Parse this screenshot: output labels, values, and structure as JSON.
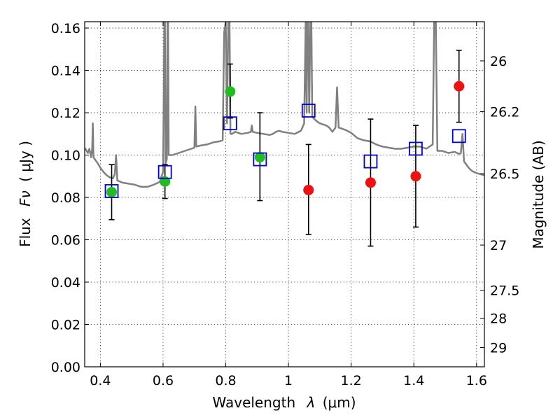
{
  "chart_data": {
    "type": "scatter",
    "xlabel_text": "Wavelength",
    "xlabel_math_symbol": "λ",
    "xlabel_unit": "(μm)",
    "ylabel_text": "Flux",
    "ylabel_math_symbol": "Fν",
    "ylabel_unit": "( μJy )",
    "y2label": "Magnitude (AB)",
    "xlim": [
      0.35,
      1.625
    ],
    "ylim": [
      0.0,
      0.163
    ],
    "x_ticks": [
      0.4,
      0.6,
      0.8,
      1.0,
      1.2,
      1.4,
      1.6
    ],
    "x_tick_labels": [
      "0.4",
      "0.6",
      "0.8",
      "1",
      "1.2",
      "1.4",
      "1.6"
    ],
    "y_ticks": [
      0.0,
      0.02,
      0.04,
      0.06,
      0.08,
      0.1,
      0.12,
      0.14,
      0.16
    ],
    "y_tick_labels": [
      "0.00",
      "0.02",
      "0.04",
      "0.06",
      "0.08",
      "0.10",
      "0.12",
      "0.14",
      "0.16"
    ],
    "y2_ticks": [
      {
        "flux": 0.1445,
        "label": "26"
      },
      {
        "flux": 0.1205,
        "label": "26.2"
      },
      {
        "flux": 0.0912,
        "label": "26.5"
      },
      {
        "flux": 0.0575,
        "label": "27"
      },
      {
        "flux": 0.0362,
        "label": "27.5"
      },
      {
        "flux": 0.0229,
        "label": "28"
      },
      {
        "flux": 0.0091,
        "label": "29"
      }
    ],
    "grid": true,
    "series": [
      {
        "kind": "line",
        "color": "#808080",
        "points": [
          [
            0.35,
            0.1035
          ],
          [
            0.36,
            0.101
          ],
          [
            0.365,
            0.103
          ],
          [
            0.37,
            0.099
          ],
          [
            0.374,
            0.103
          ],
          [
            0.376,
            0.115
          ],
          [
            0.378,
            0.099
          ],
          [
            0.385,
            0.0975
          ],
          [
            0.392,
            0.096
          ],
          [
            0.4,
            0.094
          ],
          [
            0.41,
            0.092
          ],
          [
            0.42,
            0.0905
          ],
          [
            0.43,
            0.0895
          ],
          [
            0.44,
            0.089
          ],
          [
            0.446,
            0.091
          ],
          [
            0.45,
            0.1
          ],
          [
            0.454,
            0.088
          ],
          [
            0.47,
            0.087
          ],
          [
            0.49,
            0.0865
          ],
          [
            0.51,
            0.086
          ],
          [
            0.53,
            0.085
          ],
          [
            0.55,
            0.085
          ],
          [
            0.57,
            0.086
          ],
          [
            0.585,
            0.087
          ],
          [
            0.59,
            0.0875
          ],
          [
            0.595,
            0.09
          ],
          [
            0.6,
            0.092
          ],
          [
            0.604,
            0.163
          ],
          [
            0.606,
            0.163
          ],
          [
            0.608,
            0.096
          ],
          [
            0.612,
            0.098
          ],
          [
            0.614,
            0.163
          ],
          [
            0.616,
            0.163
          ],
          [
            0.618,
            0.1
          ],
          [
            0.63,
            0.1
          ],
          [
            0.65,
            0.101
          ],
          [
            0.67,
            0.102
          ],
          [
            0.69,
            0.103
          ],
          [
            0.7,
            0.1035
          ],
          [
            0.703,
            0.123
          ],
          [
            0.706,
            0.104
          ],
          [
            0.72,
            0.1045
          ],
          [
            0.74,
            0.105
          ],
          [
            0.76,
            0.106
          ],
          [
            0.78,
            0.1065
          ],
          [
            0.79,
            0.107
          ],
          [
            0.795,
            0.158
          ],
          [
            0.8,
            0.163
          ],
          [
            0.804,
            0.115
          ],
          [
            0.808,
            0.163
          ],
          [
            0.812,
            0.163
          ],
          [
            0.815,
            0.11
          ],
          [
            0.82,
            0.11
          ],
          [
            0.83,
            0.111
          ],
          [
            0.85,
            0.11
          ],
          [
            0.87,
            0.1105
          ],
          [
            0.88,
            0.111
          ],
          [
            0.883,
            0.114
          ],
          [
            0.886,
            0.111
          ],
          [
            0.9,
            0.1105
          ],
          [
            0.92,
            0.11
          ],
          [
            0.94,
            0.1095
          ],
          [
            0.95,
            0.11
          ],
          [
            0.96,
            0.111
          ],
          [
            0.97,
            0.1115
          ],
          [
            0.98,
            0.111
          ],
          [
            1.0,
            0.1105
          ],
          [
            1.02,
            0.11
          ],
          [
            1.04,
            0.1115
          ],
          [
            1.05,
            0.115
          ],
          [
            1.055,
            0.163
          ],
          [
            1.058,
            0.12
          ],
          [
            1.06,
            0.163
          ],
          [
            1.063,
            0.163
          ],
          [
            1.066,
            0.12
          ],
          [
            1.07,
            0.163
          ],
          [
            1.073,
            0.163
          ],
          [
            1.076,
            0.118
          ],
          [
            1.09,
            0.116
          ],
          [
            1.1,
            0.115
          ],
          [
            1.11,
            0.1145
          ],
          [
            1.12,
            0.114
          ],
          [
            1.13,
            0.113
          ],
          [
            1.14,
            0.111
          ],
          [
            1.15,
            0.113
          ],
          [
            1.155,
            0.132
          ],
          [
            1.16,
            0.113
          ],
          [
            1.18,
            0.112
          ],
          [
            1.2,
            0.1105
          ],
          [
            1.22,
            0.108
          ],
          [
            1.24,
            0.107
          ],
          [
            1.26,
            0.1065
          ],
          [
            1.28,
            0.105
          ],
          [
            1.3,
            0.104
          ],
          [
            1.32,
            0.1035
          ],
          [
            1.34,
            0.103
          ],
          [
            1.36,
            0.103
          ],
          [
            1.38,
            0.1035
          ],
          [
            1.4,
            0.104
          ],
          [
            1.42,
            0.104
          ],
          [
            1.44,
            0.103
          ],
          [
            1.45,
            0.104
          ],
          [
            1.46,
            0.105
          ],
          [
            1.465,
            0.163
          ],
          [
            1.47,
            0.163
          ],
          [
            1.475,
            0.102
          ],
          [
            1.49,
            0.102
          ],
          [
            1.51,
            0.101
          ],
          [
            1.53,
            0.1015
          ],
          [
            1.545,
            0.1005
          ],
          [
            1.55,
            0.101
          ],
          [
            1.555,
            0.11
          ],
          [
            1.56,
            0.097
          ],
          [
            1.575,
            0.094
          ],
          [
            1.585,
            0.0925
          ],
          [
            1.6,
            0.0915
          ],
          [
            1.625,
            0.0905
          ]
        ]
      },
      {
        "kind": "errorbar",
        "color": "#000000",
        "points": [
          {
            "x": 0.436,
            "y": 0.0825,
            "lo": 0.0695,
            "hi": 0.0955
          },
          {
            "x": 0.606,
            "y": 0.0875,
            "lo": 0.0795,
            "hi": 0.0955
          },
          {
            "x": 0.814,
            "y": 0.13,
            "lo": 0.1175,
            "hi": 0.143
          },
          {
            "x": 0.909,
            "y": 0.099,
            "lo": 0.0785,
            "hi": 0.12
          },
          {
            "x": 1.064,
            "y": 0.0835,
            "lo": 0.0625,
            "hi": 0.105
          },
          {
            "x": 1.262,
            "y": 0.087,
            "lo": 0.057,
            "hi": 0.117
          },
          {
            "x": 1.406,
            "y": 0.09,
            "lo": 0.066,
            "hi": 0.114
          },
          {
            "x": 1.544,
            "y": 0.1325,
            "lo": 0.1155,
            "hi": 0.1495
          }
        ]
      },
      {
        "kind": "circle",
        "color": "#22bb22",
        "points": [
          [
            0.436,
            0.0825
          ],
          [
            0.606,
            0.0875
          ],
          [
            0.814,
            0.13
          ],
          [
            0.909,
            0.099
          ]
        ]
      },
      {
        "kind": "circle",
        "color": "#ee1111",
        "points": [
          [
            1.064,
            0.0835
          ],
          [
            1.262,
            0.087
          ],
          [
            1.406,
            0.09
          ],
          [
            1.544,
            0.1325
          ]
        ]
      },
      {
        "kind": "square",
        "color": "#0000cc",
        "points": [
          [
            0.436,
            0.083
          ],
          [
            0.606,
            0.092
          ],
          [
            0.814,
            0.115
          ],
          [
            0.909,
            0.098
          ],
          [
            1.064,
            0.121
          ],
          [
            1.262,
            0.097
          ],
          [
            1.406,
            0.103
          ],
          [
            1.544,
            0.109
          ]
        ]
      }
    ]
  }
}
